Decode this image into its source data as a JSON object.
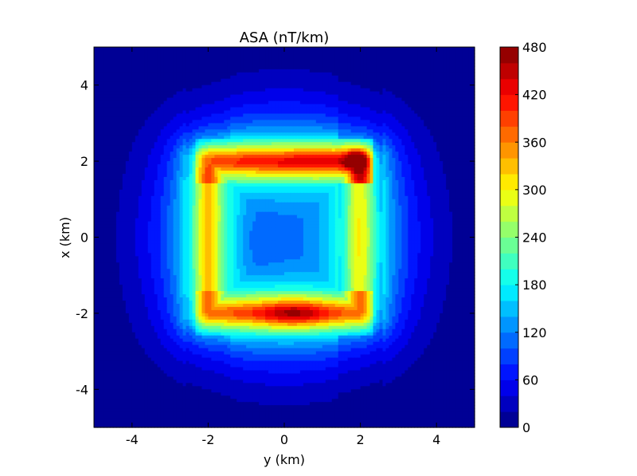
{
  "chart_data": {
    "type": "heatmap",
    "subtype": "filled-contour",
    "title": "ASA (nT/km)",
    "xlabel": "y (km)",
    "ylabel": "x (km)",
    "xlim": [
      -5,
      5
    ],
    "ylim": [
      -5,
      5
    ],
    "xticks": [
      "-4",
      "-2",
      "0",
      "2",
      "4"
    ],
    "yticks": [
      "4",
      "2",
      "0",
      "-2",
      "-4"
    ],
    "grid": false,
    "colormap": "jet",
    "colorbar": {
      "range": [
        0,
        480
      ],
      "levels": 24,
      "ticks": [
        "480",
        "420",
        "360",
        "300",
        "240",
        "180",
        "120",
        "60",
        "0"
      ]
    },
    "anomaly": {
      "description": "square ring of high analytic signal amplitude",
      "ring_half_width_km": 2.0,
      "max_value": 480,
      "max_location": {
        "y": 1.9,
        "x": 2.0
      },
      "min_location": {
        "y": -0.8,
        "x": -0.1
      }
    }
  }
}
